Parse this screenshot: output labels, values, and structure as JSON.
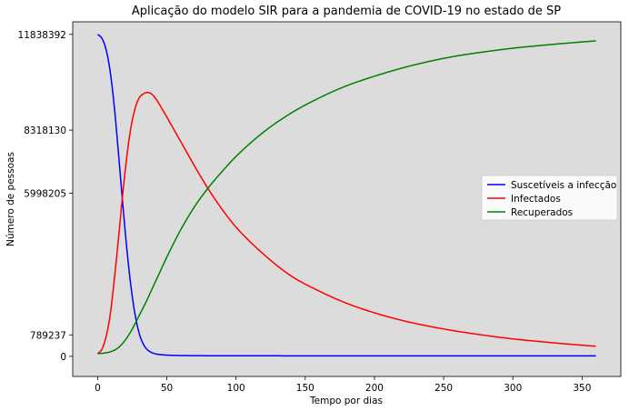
{
  "chart_data": {
    "type": "line",
    "title": "Aplicação do modelo SIR para a pandemia de COVID-19 no estado de SP",
    "xlabel": "Tempo por dias",
    "ylabel": "Número de pessoas",
    "xlim": [
      -18,
      378
    ],
    "ylim": [
      -740000,
      12300000
    ],
    "xticks": [
      0,
      50,
      100,
      150,
      200,
      250,
      300,
      350
    ],
    "xtick_labels": [
      "0",
      "50",
      "100",
      "150",
      "200",
      "250",
      "300",
      "350"
    ],
    "yticks": [
      0,
      789237,
      5998205,
      8318130,
      11838392
    ],
    "ytick_labels": [
      "0",
      "789237",
      "5998205",
      "8318130",
      "11838392"
    ],
    "grid": false,
    "legend_position": "center-right",
    "background": "#dcdcdc",
    "series": [
      {
        "name": "Suscetíveis a infecção",
        "color": "#0000ff",
        "x": [
          0,
          3,
          6,
          9,
          12,
          15,
          18,
          21,
          24,
          27,
          30,
          33,
          36,
          39,
          42,
          45,
          50,
          55,
          60,
          70,
          80,
          100,
          150,
          200,
          250,
          300,
          360
        ],
        "y": [
          11838392,
          11700000,
          11300000,
          10500000,
          9200000,
          7500000,
          5700000,
          4000000,
          2600000,
          1550000,
          850000,
          450000,
          240000,
          140000,
          90000,
          65000,
          45000,
          35000,
          30000,
          25000,
          22000,
          20000,
          18000,
          17000,
          16000,
          15500,
          15000
        ]
      },
      {
        "name": "Infectados",
        "color": "#ff0000",
        "x": [
          0,
          3,
          6,
          9,
          12,
          15,
          18,
          21,
          24,
          27,
          30,
          33,
          36,
          38,
          40,
          43,
          46,
          50,
          55,
          60,
          70,
          80,
          90,
          100,
          120,
          140,
          160,
          180,
          200,
          220,
          240,
          260,
          280,
          300,
          320,
          340,
          360
        ],
        "y": [
          100000,
          250000,
          700000,
          1500000,
          2800000,
          4300000,
          5900000,
          7300000,
          8400000,
          9100000,
          9500000,
          9650000,
          9700000,
          9680000,
          9600000,
          9400000,
          9150000,
          8800000,
          8350000,
          7900000,
          7000000,
          6150000,
          5400000,
          4750000,
          3750000,
          2950000,
          2400000,
          1950000,
          1600000,
          1320000,
          1100000,
          920000,
          770000,
          640000,
          540000,
          450000,
          370000
        ]
      },
      {
        "name": "Recuperados",
        "color": "#008000",
        "x": [
          0,
          5,
          10,
          15,
          20,
          25,
          30,
          35,
          40,
          45,
          50,
          60,
          70,
          80,
          90,
          100,
          120,
          140,
          160,
          180,
          200,
          220,
          240,
          260,
          280,
          300,
          320,
          340,
          360
        ],
        "y": [
          100000,
          120000,
          180000,
          320000,
          600000,
          1000000,
          1500000,
          2000000,
          2550000,
          3100000,
          3650000,
          4650000,
          5500000,
          6200000,
          6800000,
          7350000,
          8250000,
          8950000,
          9500000,
          9950000,
          10300000,
          10600000,
          10850000,
          11050000,
          11200000,
          11330000,
          11430000,
          11520000,
          11600000
        ]
      }
    ]
  }
}
